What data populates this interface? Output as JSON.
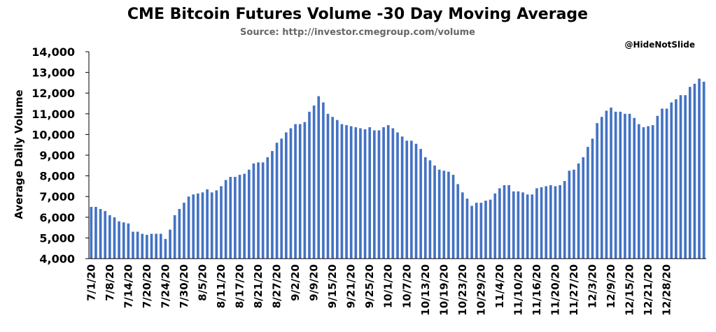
{
  "chart_data": {
    "type": "bar",
    "title": "CME Bitcoin Futures Volume -30 Day Moving Average",
    "subtitle": "Source: http://investor.cmegroup.com/volume",
    "credit": "@HideNotSlide",
    "ylabel": "Average Daily Volume",
    "ylim": [
      4000,
      14000
    ],
    "yticks": [
      4000,
      5000,
      6000,
      7000,
      8000,
      9000,
      10000,
      11000,
      12000,
      13000,
      14000
    ],
    "ytick_labels": [
      "4,000",
      "5,000",
      "6,000",
      "7,000",
      "8,000",
      "9,000",
      "10,000",
      "11,000",
      "12,000",
      "13,000",
      "14,000"
    ],
    "xtick_labels": [
      "7/1/20",
      "7/8/20",
      "7/14/20",
      "7/20/20",
      "7/24/20",
      "7/30/20",
      "8/5/20",
      "8/11/20",
      "8/17/20",
      "8/21/20",
      "8/27/20",
      "9/2/20",
      "9/9/20",
      "9/15/20",
      "9/21/20",
      "9/25/20",
      "10/1/20",
      "10/7/20",
      "10/13/20",
      "10/19/20",
      "10/23/20",
      "10/29/20",
      "11/4/20",
      "11/10/20",
      "11/16/20",
      "11/20/20",
      "11/27/20",
      "12/3/20",
      "12/9/20",
      "12/15/20",
      "12/21/20",
      "12/28/20"
    ],
    "xtick_every": 4,
    "bar_color": "#4472C4",
    "grid": false,
    "values": [
      6500,
      6500,
      6400,
      6300,
      6100,
      6000,
      5800,
      5750,
      5700,
      5300,
      5300,
      5200,
      5150,
      5200,
      5200,
      5200,
      4950,
      5400,
      6100,
      6400,
      6700,
      7000,
      7100,
      7150,
      7200,
      7350,
      7200,
      7300,
      7500,
      7800,
      7950,
      7950,
      8050,
      8100,
      8300,
      8600,
      8650,
      8650,
      8900,
      9200,
      9600,
      9800,
      10100,
      10300,
      10500,
      10500,
      10600,
      11100,
      11400,
      11850,
      11550,
      11000,
      10850,
      10700,
      10500,
      10450,
      10400,
      10350,
      10300,
      10250,
      10350,
      10200,
      10200,
      10350,
      10450,
      10300,
      10100,
      9900,
      9700,
      9700,
      9550,
      9300,
      8900,
      8750,
      8500,
      8300,
      8250,
      8200,
      8050,
      7600,
      7200,
      6900,
      6550,
      6700,
      6700,
      6800,
      6850,
      7150,
      7400,
      7550,
      7550,
      7250,
      7250,
      7200,
      7100,
      7100,
      7400,
      7450,
      7500,
      7550,
      7500,
      7550,
      7750,
      8250,
      8300,
      8600,
      8900,
      9400,
      9800,
      10550,
      10850,
      11150,
      11300,
      11100,
      11100,
      11000,
      11000,
      10800,
      10500,
      10350,
      10400,
      10450,
      10900,
      11250,
      11250,
      11550,
      11700,
      11900,
      11900,
      12300,
      12450,
      12700,
      12550
    ]
  }
}
